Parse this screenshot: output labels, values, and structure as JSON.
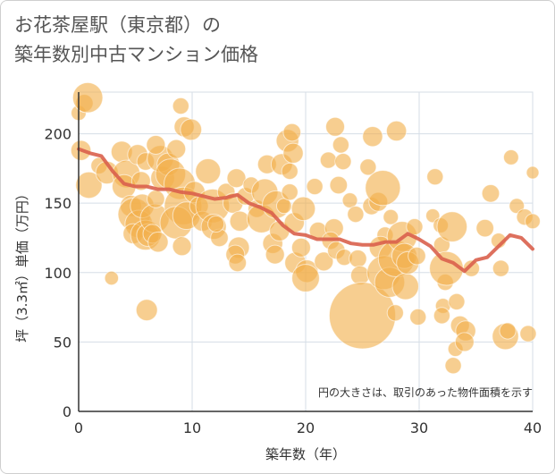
{
  "title_line1": "お花茶屋駅（東京都）の",
  "title_line2": "築年数別中古マンション価格",
  "note": "円の大きさは、取引のあった物件面積を示す",
  "chart_data": {
    "type": "scatter",
    "xlabel": "築年数（年）",
    "ylabel": "坪（3.3㎡）単価（万円）",
    "xlim": [
      0,
      40
    ],
    "ylim": [
      0,
      230
    ],
    "xticks": [
      0,
      10,
      20,
      30,
      40
    ],
    "yticks": [
      0,
      50,
      100,
      150,
      200
    ],
    "grid": true,
    "colors": {
      "bubble": "#f2b04c",
      "line": "#d9604c",
      "grid": "#d5dde6",
      "axis": "#333333"
    },
    "bubbles": [
      {
        "x": 0,
        "y": 215,
        "s": 1.2
      },
      {
        "x": 0.5,
        "y": 222,
        "s": 1.4
      },
      {
        "x": 0.8,
        "y": 226,
        "s": 2.4
      },
      {
        "x": 0.2,
        "y": 188,
        "s": 1.6
      },
      {
        "x": 0.9,
        "y": 163,
        "s": 2.1
      },
      {
        "x": 1.8,
        "y": 177,
        "s": 1.3
      },
      {
        "x": 2.5,
        "y": 172,
        "s": 1.8
      },
      {
        "x": 3.8,
        "y": 187,
        "s": 1.7
      },
      {
        "x": 4.2,
        "y": 171,
        "s": 2.2
      },
      {
        "x": 4.0,
        "y": 162,
        "s": 1.9
      },
      {
        "x": 5.2,
        "y": 185,
        "s": 1.6
      },
      {
        "x": 5.9,
        "y": 180,
        "s": 1.4
      },
      {
        "x": 5.5,
        "y": 166,
        "s": 1.5
      },
      {
        "x": 4.6,
        "y": 148,
        "s": 1.7
      },
      {
        "x": 4.9,
        "y": 142,
        "s": 2.6
      },
      {
        "x": 5.3,
        "y": 135,
        "s": 2.2
      },
      {
        "x": 4.8,
        "y": 128,
        "s": 1.6
      },
      {
        "x": 5.6,
        "y": 148,
        "s": 1.9
      },
      {
        "x": 5.9,
        "y": 127,
        "s": 2.4
      },
      {
        "x": 6.1,
        "y": 127,
        "s": 1.8
      },
      {
        "x": 6.7,
        "y": 139,
        "s": 2.3
      },
      {
        "x": 6.5,
        "y": 128,
        "s": 1.5
      },
      {
        "x": 7.0,
        "y": 122,
        "s": 1.6
      },
      {
        "x": 6.8,
        "y": 153,
        "s": 1.4
      },
      {
        "x": 7.4,
        "y": 168,
        "s": 1.9
      },
      {
        "x": 7.2,
        "y": 182,
        "s": 2.1
      },
      {
        "x": 6.8,
        "y": 192,
        "s": 1.5
      },
      {
        "x": 7.9,
        "y": 178,
        "s": 1.8
      },
      {
        "x": 8.1,
        "y": 171,
        "s": 2.4
      },
      {
        "x": 8.6,
        "y": 189,
        "s": 1.5
      },
      {
        "x": 9.0,
        "y": 220,
        "s": 1.3
      },
      {
        "x": 9.3,
        "y": 205,
        "s": 1.6
      },
      {
        "x": 9.9,
        "y": 203,
        "s": 1.7
      },
      {
        "x": 8.9,
        "y": 164,
        "s": 2.5
      },
      {
        "x": 9.2,
        "y": 148,
        "s": 3.0
      },
      {
        "x": 8.6,
        "y": 136,
        "s": 2.6
      },
      {
        "x": 9.5,
        "y": 141,
        "s": 2.2
      },
      {
        "x": 9.1,
        "y": 119,
        "s": 1.5
      },
      {
        "x": 10.2,
        "y": 158,
        "s": 1.7
      },
      {
        "x": 10.6,
        "y": 148,
        "s": 1.5
      },
      {
        "x": 10.9,
        "y": 137,
        "s": 1.6
      },
      {
        "x": 11.4,
        "y": 173,
        "s": 2.0
      },
      {
        "x": 11.8,
        "y": 148,
        "s": 2.7
      },
      {
        "x": 11.9,
        "y": 133,
        "s": 2.0
      },
      {
        "x": 12.4,
        "y": 125,
        "s": 1.4
      },
      {
        "x": 12.1,
        "y": 135,
        "s": 1.3
      },
      {
        "x": 13.0,
        "y": 158,
        "s": 1.4
      },
      {
        "x": 13.6,
        "y": 150,
        "s": 1.6
      },
      {
        "x": 13.9,
        "y": 168,
        "s": 1.5
      },
      {
        "x": 14.2,
        "y": 137,
        "s": 1.6
      },
      {
        "x": 14.1,
        "y": 118,
        "s": 1.7
      },
      {
        "x": 13.8,
        "y": 113,
        "s": 1.5
      },
      {
        "x": 14.0,
        "y": 107,
        "s": 1.4
      },
      {
        "x": 14.7,
        "y": 155,
        "s": 1.4
      },
      {
        "x": 15.2,
        "y": 163,
        "s": 1.3
      },
      {
        "x": 15.7,
        "y": 146,
        "s": 1.4
      },
      {
        "x": 16.1,
        "y": 139,
        "s": 2.3
      },
      {
        "x": 16.4,
        "y": 158,
        "s": 2.1
      },
      {
        "x": 16.6,
        "y": 178,
        "s": 1.5
      },
      {
        "x": 17.1,
        "y": 121,
        "s": 1.6
      },
      {
        "x": 17.3,
        "y": 113,
        "s": 1.5
      },
      {
        "x": 17.7,
        "y": 130,
        "s": 1.6
      },
      {
        "x": 17.4,
        "y": 149,
        "s": 2.2
      },
      {
        "x": 17.9,
        "y": 178,
        "s": 1.7
      },
      {
        "x": 18.4,
        "y": 195,
        "s": 1.8
      },
      {
        "x": 18.9,
        "y": 186,
        "s": 1.6
      },
      {
        "x": 18.8,
        "y": 201,
        "s": 1.4
      },
      {
        "x": 18.6,
        "y": 173,
        "s": 1.3
      },
      {
        "x": 18.1,
        "y": 148,
        "s": 1.2
      },
      {
        "x": 18.6,
        "y": 158,
        "s": 1.3
      },
      {
        "x": 19.0,
        "y": 136,
        "s": 1.6
      },
      {
        "x": 19.1,
        "y": 107,
        "s": 1.7
      },
      {
        "x": 19.6,
        "y": 118,
        "s": 1.5
      },
      {
        "x": 20.1,
        "y": 101,
        "s": 1.8
      },
      {
        "x": 20.0,
        "y": 96,
        "s": 2.2
      },
      {
        "x": 19.8,
        "y": 146,
        "s": 1.9
      },
      {
        "x": 20.8,
        "y": 162,
        "s": 1.3
      },
      {
        "x": 21.1,
        "y": 130,
        "s": 1.4
      },
      {
        "x": 21.6,
        "y": 108,
        "s": 1.5
      },
      {
        "x": 22.0,
        "y": 181,
        "s": 1.3
      },
      {
        "x": 22.6,
        "y": 205,
        "s": 1.5
      },
      {
        "x": 23.1,
        "y": 192,
        "s": 1.3
      },
      {
        "x": 23.3,
        "y": 180,
        "s": 1.3
      },
      {
        "x": 22.9,
        "y": 163,
        "s": 1.4
      },
      {
        "x": 22.5,
        "y": 132,
        "s": 1.5
      },
      {
        "x": 22.2,
        "y": 123,
        "s": 1.4
      },
      {
        "x": 22.7,
        "y": 116,
        "s": 1.4
      },
      {
        "x": 23.4,
        "y": 111,
        "s": 1.3
      },
      {
        "x": 23.9,
        "y": 152,
        "s": 1.2
      },
      {
        "x": 24.4,
        "y": 142,
        "s": 1.3
      },
      {
        "x": 24.6,
        "y": 110,
        "s": 1.4
      },
      {
        "x": 24.8,
        "y": 98,
        "s": 1.5
      },
      {
        "x": 25.0,
        "y": 69,
        "s": 5.3
      },
      {
        "x": 25.9,
        "y": 198,
        "s": 1.6
      },
      {
        "x": 25.5,
        "y": 176,
        "s": 1.3
      },
      {
        "x": 25.8,
        "y": 148,
        "s": 1.4
      },
      {
        "x": 26.4,
        "y": 151,
        "s": 1.5
      },
      {
        "x": 26.8,
        "y": 161,
        "s": 2.8
      },
      {
        "x": 27.0,
        "y": 127,
        "s": 1.3
      },
      {
        "x": 26.6,
        "y": 118,
        "s": 1.8
      },
      {
        "x": 26.9,
        "y": 100,
        "s": 2.7
      },
      {
        "x": 27.4,
        "y": 93,
        "s": 2.4
      },
      {
        "x": 27.9,
        "y": 71,
        "s": 1.3
      },
      {
        "x": 28.0,
        "y": 110,
        "s": 2.9
      },
      {
        "x": 27.5,
        "y": 140,
        "s": 1.2
      },
      {
        "x": 28.0,
        "y": 202,
        "s": 1.6
      },
      {
        "x": 28.5,
        "y": 126,
        "s": 2.4
      },
      {
        "x": 28.7,
        "y": 112,
        "s": 2.0
      },
      {
        "x": 28.8,
        "y": 90,
        "s": 2.1
      },
      {
        "x": 29.0,
        "y": 107,
        "s": 1.8
      },
      {
        "x": 29.6,
        "y": 133,
        "s": 1.3
      },
      {
        "x": 29.8,
        "y": 112,
        "s": 1.4
      },
      {
        "x": 29.9,
        "y": 68,
        "s": 1.3
      },
      {
        "x": 31.4,
        "y": 169,
        "s": 1.3
      },
      {
        "x": 31.2,
        "y": 141,
        "s": 1.1
      },
      {
        "x": 31.9,
        "y": 134,
        "s": 1.2
      },
      {
        "x": 32.0,
        "y": 120,
        "s": 1.3
      },
      {
        "x": 32.3,
        "y": 93,
        "s": 1.3
      },
      {
        "x": 32.1,
        "y": 76,
        "s": 1.2
      },
      {
        "x": 32.0,
        "y": 69,
        "s": 1.3
      },
      {
        "x": 32.9,
        "y": 133,
        "s": 2.4
      },
      {
        "x": 32.4,
        "y": 103,
        "s": 2.7
      },
      {
        "x": 33.3,
        "y": 79,
        "s": 1.3
      },
      {
        "x": 33.6,
        "y": 62,
        "s": 1.5
      },
      {
        "x": 33.2,
        "y": 45,
        "s": 1.2
      },
      {
        "x": 33.0,
        "y": 33,
        "s": 1.3
      },
      {
        "x": 34.1,
        "y": 58,
        "s": 1.6
      },
      {
        "x": 34.0,
        "y": 50,
        "s": 1.5
      },
      {
        "x": 34.6,
        "y": 103,
        "s": 1.3
      },
      {
        "x": 35.8,
        "y": 132,
        "s": 1.4
      },
      {
        "x": 36.3,
        "y": 157,
        "s": 1.4
      },
      {
        "x": 37.0,
        "y": 123,
        "s": 1.2
      },
      {
        "x": 37.2,
        "y": 103,
        "s": 1.3
      },
      {
        "x": 37.6,
        "y": 54,
        "s": 2.1
      },
      {
        "x": 37.8,
        "y": 58,
        "s": 1.3
      },
      {
        "x": 38.1,
        "y": 183,
        "s": 1.2
      },
      {
        "x": 38.6,
        "y": 148,
        "s": 1.2
      },
      {
        "x": 39.3,
        "y": 140,
        "s": 1.3
      },
      {
        "x": 39.6,
        "y": 56,
        "s": 1.3
      },
      {
        "x": 40.0,
        "y": 137,
        "s": 1.2
      },
      {
        "x": 40.0,
        "y": 172,
        "s": 1.0
      },
      {
        "x": 2.9,
        "y": 96,
        "s": 1.1
      },
      {
        "x": 6.0,
        "y": 73,
        "s": 1.7
      }
    ],
    "trend": {
      "x": [
        0,
        1,
        2,
        3,
        4,
        5,
        6,
        7,
        8,
        9,
        10,
        11,
        12,
        13,
        14,
        15,
        16,
        17,
        18,
        19,
        20,
        21,
        22,
        23,
        24,
        25,
        26,
        27,
        28,
        29,
        30,
        31,
        32,
        33,
        34,
        35,
        36,
        37,
        38,
        39,
        40
      ],
      "y": [
        189,
        186,
        184,
        173,
        164,
        162,
        162,
        160,
        160,
        158,
        157,
        155,
        153,
        154,
        156,
        150,
        147,
        143,
        134,
        128,
        127,
        124,
        124,
        124,
        121,
        120,
        120,
        122,
        122,
        128,
        124,
        119,
        110,
        107,
        101,
        109,
        111,
        119,
        127,
        125,
        117
      ]
    }
  }
}
